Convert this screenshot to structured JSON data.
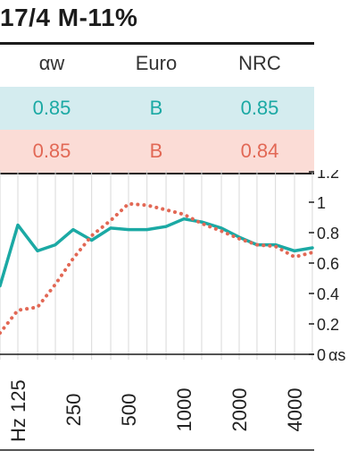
{
  "title": "17/4 M-11%",
  "table": {
    "headers": [
      "αw",
      "Euro",
      "NRC"
    ],
    "rows": [
      {
        "values": [
          "0.85",
          "B",
          "0.85"
        ],
        "color": "#1ba9a4",
        "bg": "#d4ecef"
      },
      {
        "values": [
          "0.85",
          "B",
          "0.84"
        ],
        "color": "#e26855",
        "bg": "#fbdcd6"
      }
    ]
  },
  "chart_data": {
    "type": "line",
    "y_axis_title": "αs",
    "x_axis_unit": "Hz",
    "ylim": [
      0,
      1.2
    ],
    "yticks": [
      "1.2",
      "1",
      "0.8",
      "0.6",
      "0.4",
      "0.2",
      "0"
    ],
    "xtick_labels": [
      "125",
      "250",
      "500",
      "1000",
      "2000",
      "4000"
    ],
    "x": [
      100,
      125,
      160,
      200,
      250,
      315,
      400,
      500,
      630,
      800,
      1000,
      1250,
      1600,
      2000,
      2500,
      3150,
      4000,
      5000
    ],
    "series": [
      {
        "color": "#1ba9a4",
        "style": "solid",
        "values": [
          0.45,
          0.85,
          0.68,
          0.72,
          0.82,
          0.75,
          0.83,
          0.82,
          0.82,
          0.84,
          0.89,
          0.87,
          0.83,
          0.77,
          0.72,
          0.72,
          0.68,
          0.7
        ]
      },
      {
        "color": "#e26855",
        "style": "dotted",
        "values": [
          0.14,
          0.29,
          0.31,
          0.46,
          0.63,
          0.78,
          0.88,
          0.99,
          0.98,
          0.95,
          0.92,
          0.86,
          0.81,
          0.76,
          0.72,
          0.71,
          0.64,
          0.67
        ]
      }
    ],
    "grid": true
  }
}
